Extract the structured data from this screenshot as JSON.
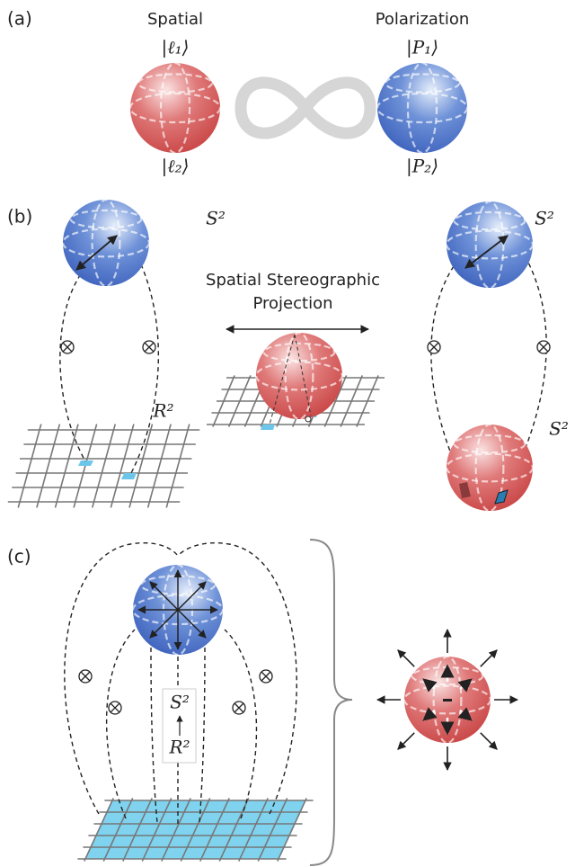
{
  "panel_a": {
    "label": "(a)",
    "spatial": {
      "title": "Spatial",
      "top_state": "|ℓ₁⟩",
      "bottom_state": "|ℓ₂⟩"
    },
    "polarization": {
      "title": "Polarization",
      "top_state": "|P₁⟩",
      "bottom_state": "|P₂⟩"
    }
  },
  "panel_b": {
    "label": "(b)",
    "left": {
      "sphere_label": "S²",
      "plane_label": "R²"
    },
    "center": {
      "caption_lines": [
        "Spatial Stereographic",
        "Projection"
      ]
    },
    "right": {
      "top_sphere_label": "S²",
      "bottom_sphere_label": "S²"
    }
  },
  "panel_c": {
    "label": "(c)",
    "map": {
      "top": "S²",
      "bottom": "R²"
    }
  }
}
